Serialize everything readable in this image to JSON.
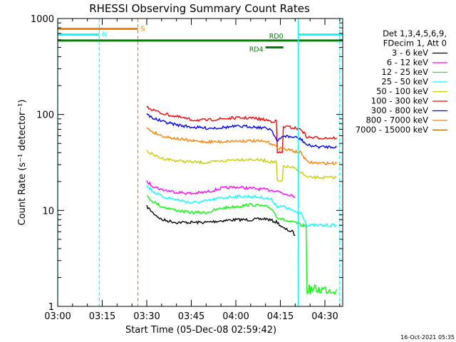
{
  "chart_data": {
    "type": "line",
    "title": "RHESSI Observing Summary Count Rates",
    "xlabel": "Start Time (05-Dec-08 02:59:42)",
    "ylabel": "Count Rate (s⁻¹ detector⁻¹)",
    "y_scale": "log",
    "ylim": [
      1,
      1000
    ],
    "xlim": [
      "03:00",
      "04:36"
    ],
    "x_tick_labels": [
      "03:00",
      "03:15",
      "03:30",
      "03:45",
      "04:00",
      "04:15",
      "04:30"
    ],
    "y_tick_labels": [
      "1",
      "10",
      "100",
      "1000"
    ],
    "legend_header": [
      "Det 1,3,4,5,6,9,",
      "FDecim 1, Att 0"
    ],
    "timestamp": "16-Oct-2021 05:35",
    "series": [
      {
        "name": "3 - 6 keV",
        "color": "#000000",
        "x": [
          "03:30",
          "03:32",
          "03:35",
          "03:40",
          "03:45",
          "03:50",
          "03:55",
          "04:00",
          "04:05",
          "04:10",
          "04:14",
          "04:16",
          "04:19",
          "04:20"
        ],
        "values": [
          11,
          9.5,
          8,
          7.5,
          7.5,
          7.5,
          7.8,
          8,
          8,
          8.2,
          7.5,
          6.5,
          6,
          5.5
        ]
      },
      {
        "name": "6 - 12 keV",
        "color": "#ff00ff",
        "x": [
          "03:30",
          "03:32",
          "03:35",
          "03:40",
          "03:45",
          "03:50",
          "03:55",
          "04:00",
          "04:05",
          "04:10",
          "04:14",
          "04:16",
          "04:19",
          "04:20"
        ],
        "values": [
          20,
          18,
          16.5,
          15.5,
          15,
          15.5,
          17,
          17.5,
          17,
          16.5,
          16,
          15,
          14.5,
          14
        ]
      },
      {
        "name": "12 - 25 keV",
        "color": "#00ff00",
        "x": [
          "03:30",
          "03:32",
          "03:35",
          "03:40",
          "03:45",
          "03:50",
          "03:55",
          "04:00",
          "04:05",
          "04:10",
          "04:12",
          "04:14",
          "04:16",
          "04:19",
          "04:20",
          "04:22",
          "04:24",
          "04:28",
          "04:32",
          "04:34"
        ],
        "values": [
          14,
          12.5,
          11,
          10,
          9.5,
          9.5,
          10.5,
          11,
          11.5,
          11,
          10.5,
          8.5,
          8,
          7.5,
          7.5,
          7,
          1.5,
          1.5,
          1.5,
          1.5
        ]
      },
      {
        "name": "25 - 50 keV",
        "color": "#00ffff",
        "x": [
          "03:30",
          "03:32",
          "03:35",
          "03:40",
          "03:45",
          "03:50",
          "03:55",
          "04:00",
          "04:05",
          "04:10",
          "04:12",
          "04:14",
          "04:16",
          "04:19",
          "04:20",
          "04:22",
          "04:24",
          "04:28",
          "04:32",
          "04:34"
        ],
        "values": [
          18,
          16,
          14,
          13,
          12,
          12.5,
          13.5,
          14,
          14,
          13.5,
          13,
          11,
          11,
          10,
          9.5,
          9.5,
          7,
          7,
          7,
          7
        ]
      },
      {
        "name": "50 - 100 keV",
        "color": "#cccc00",
        "x": [
          "03:30",
          "03:32",
          "03:35",
          "03:40",
          "03:45",
          "03:50",
          "03:55",
          "04:00",
          "04:05",
          "04:10",
          "04:12",
          "04:14",
          "04:16",
          "04:19",
          "04:20",
          "04:22",
          "04:24",
          "04:28",
          "04:32",
          "04:34"
        ],
        "values": [
          42,
          38,
          35,
          33,
          32,
          31.5,
          32.5,
          34,
          34,
          33,
          32,
          20,
          29,
          28,
          27,
          25,
          22,
          22,
          22,
          22
        ]
      },
      {
        "name": "100 - 300 keV",
        "color": "#ff0000",
        "x": [
          "03:30",
          "03:32",
          "03:35",
          "03:40",
          "03:45",
          "03:50",
          "03:55",
          "04:00",
          "04:05",
          "04:10",
          "04:12",
          "04:14",
          "04:16",
          "04:19",
          "04:20",
          "04:22",
          "04:24",
          "04:28",
          "04:32",
          "04:34"
        ],
        "values": [
          120,
          112,
          103,
          95,
          88,
          87,
          90,
          92,
          92,
          88,
          85,
          40,
          75,
          73,
          72,
          70,
          58,
          57,
          57,
          57
        ]
      },
      {
        "name": "300 - 800 keV",
        "color": "#0000ff",
        "x": [
          "03:30",
          "03:32",
          "03:35",
          "03:40",
          "03:45",
          "03:50",
          "03:55",
          "04:00",
          "04:05",
          "04:10",
          "04:12",
          "04:14",
          "04:16",
          "04:19",
          "04:20",
          "04:22",
          "04:24",
          "04:28",
          "04:32",
          "04:34"
        ],
        "values": [
          100,
          92,
          85,
          78,
          74,
          72,
          73,
          75,
          75,
          72,
          70,
          52,
          60,
          58,
          58,
          55,
          48,
          46,
          46,
          46
        ]
      },
      {
        "name": "800 - 7000 keV",
        "color": "#ff8000",
        "x": [
          "03:30",
          "03:32",
          "03:35",
          "03:40",
          "03:45",
          "03:50",
          "03:55",
          "04:00",
          "04:05",
          "04:10",
          "04:12",
          "04:14",
          "04:16",
          "04:19",
          "04:20",
          "04:22",
          "04:24",
          "04:28",
          "04:32",
          "04:34"
        ],
        "values": [
          72,
          66,
          60,
          56,
          53,
          52,
          52,
          53,
          53,
          52,
          50,
          45,
          44,
          42,
          41,
          40,
          32,
          31,
          31,
          31
        ]
      },
      {
        "name": "7000 - 15000 keV",
        "color": "#996600",
        "x": [],
        "values": []
      }
    ],
    "flags": [
      {
        "label": "S",
        "color": "#ff8000",
        "x_start": "03:00",
        "x_end": "03:27",
        "level": 780
      },
      {
        "label": "N",
        "color": "#00ffff",
        "x_start": "03:00",
        "x_end": "03:14",
        "level": 680
      },
      {
        "label": "N",
        "color": "#00ffff",
        "x_start": "04:21",
        "x_end": "04:36",
        "level": 680
      },
      {
        "label": "RD0",
        "color": "#008000",
        "x_start": "03:00",
        "x_end": "04:36",
        "level": 590
      },
      {
        "label": "RD4",
        "color": "#008000",
        "x_start": "04:10",
        "x_end": "04:16",
        "level": 500
      }
    ],
    "vertical_markers": [
      {
        "color": "#00ffff",
        "style": "solid",
        "x": "03:00"
      },
      {
        "color": "#00ffff",
        "style": "dashed",
        "x": "03:14"
      },
      {
        "color": "#ff8000",
        "style": "dashed",
        "x": "03:27"
      },
      {
        "color": "#00ffff",
        "style": "solid",
        "x": "04:21"
      },
      {
        "color": "#00ffff",
        "style": "dashed",
        "x": "04:35"
      }
    ]
  }
}
